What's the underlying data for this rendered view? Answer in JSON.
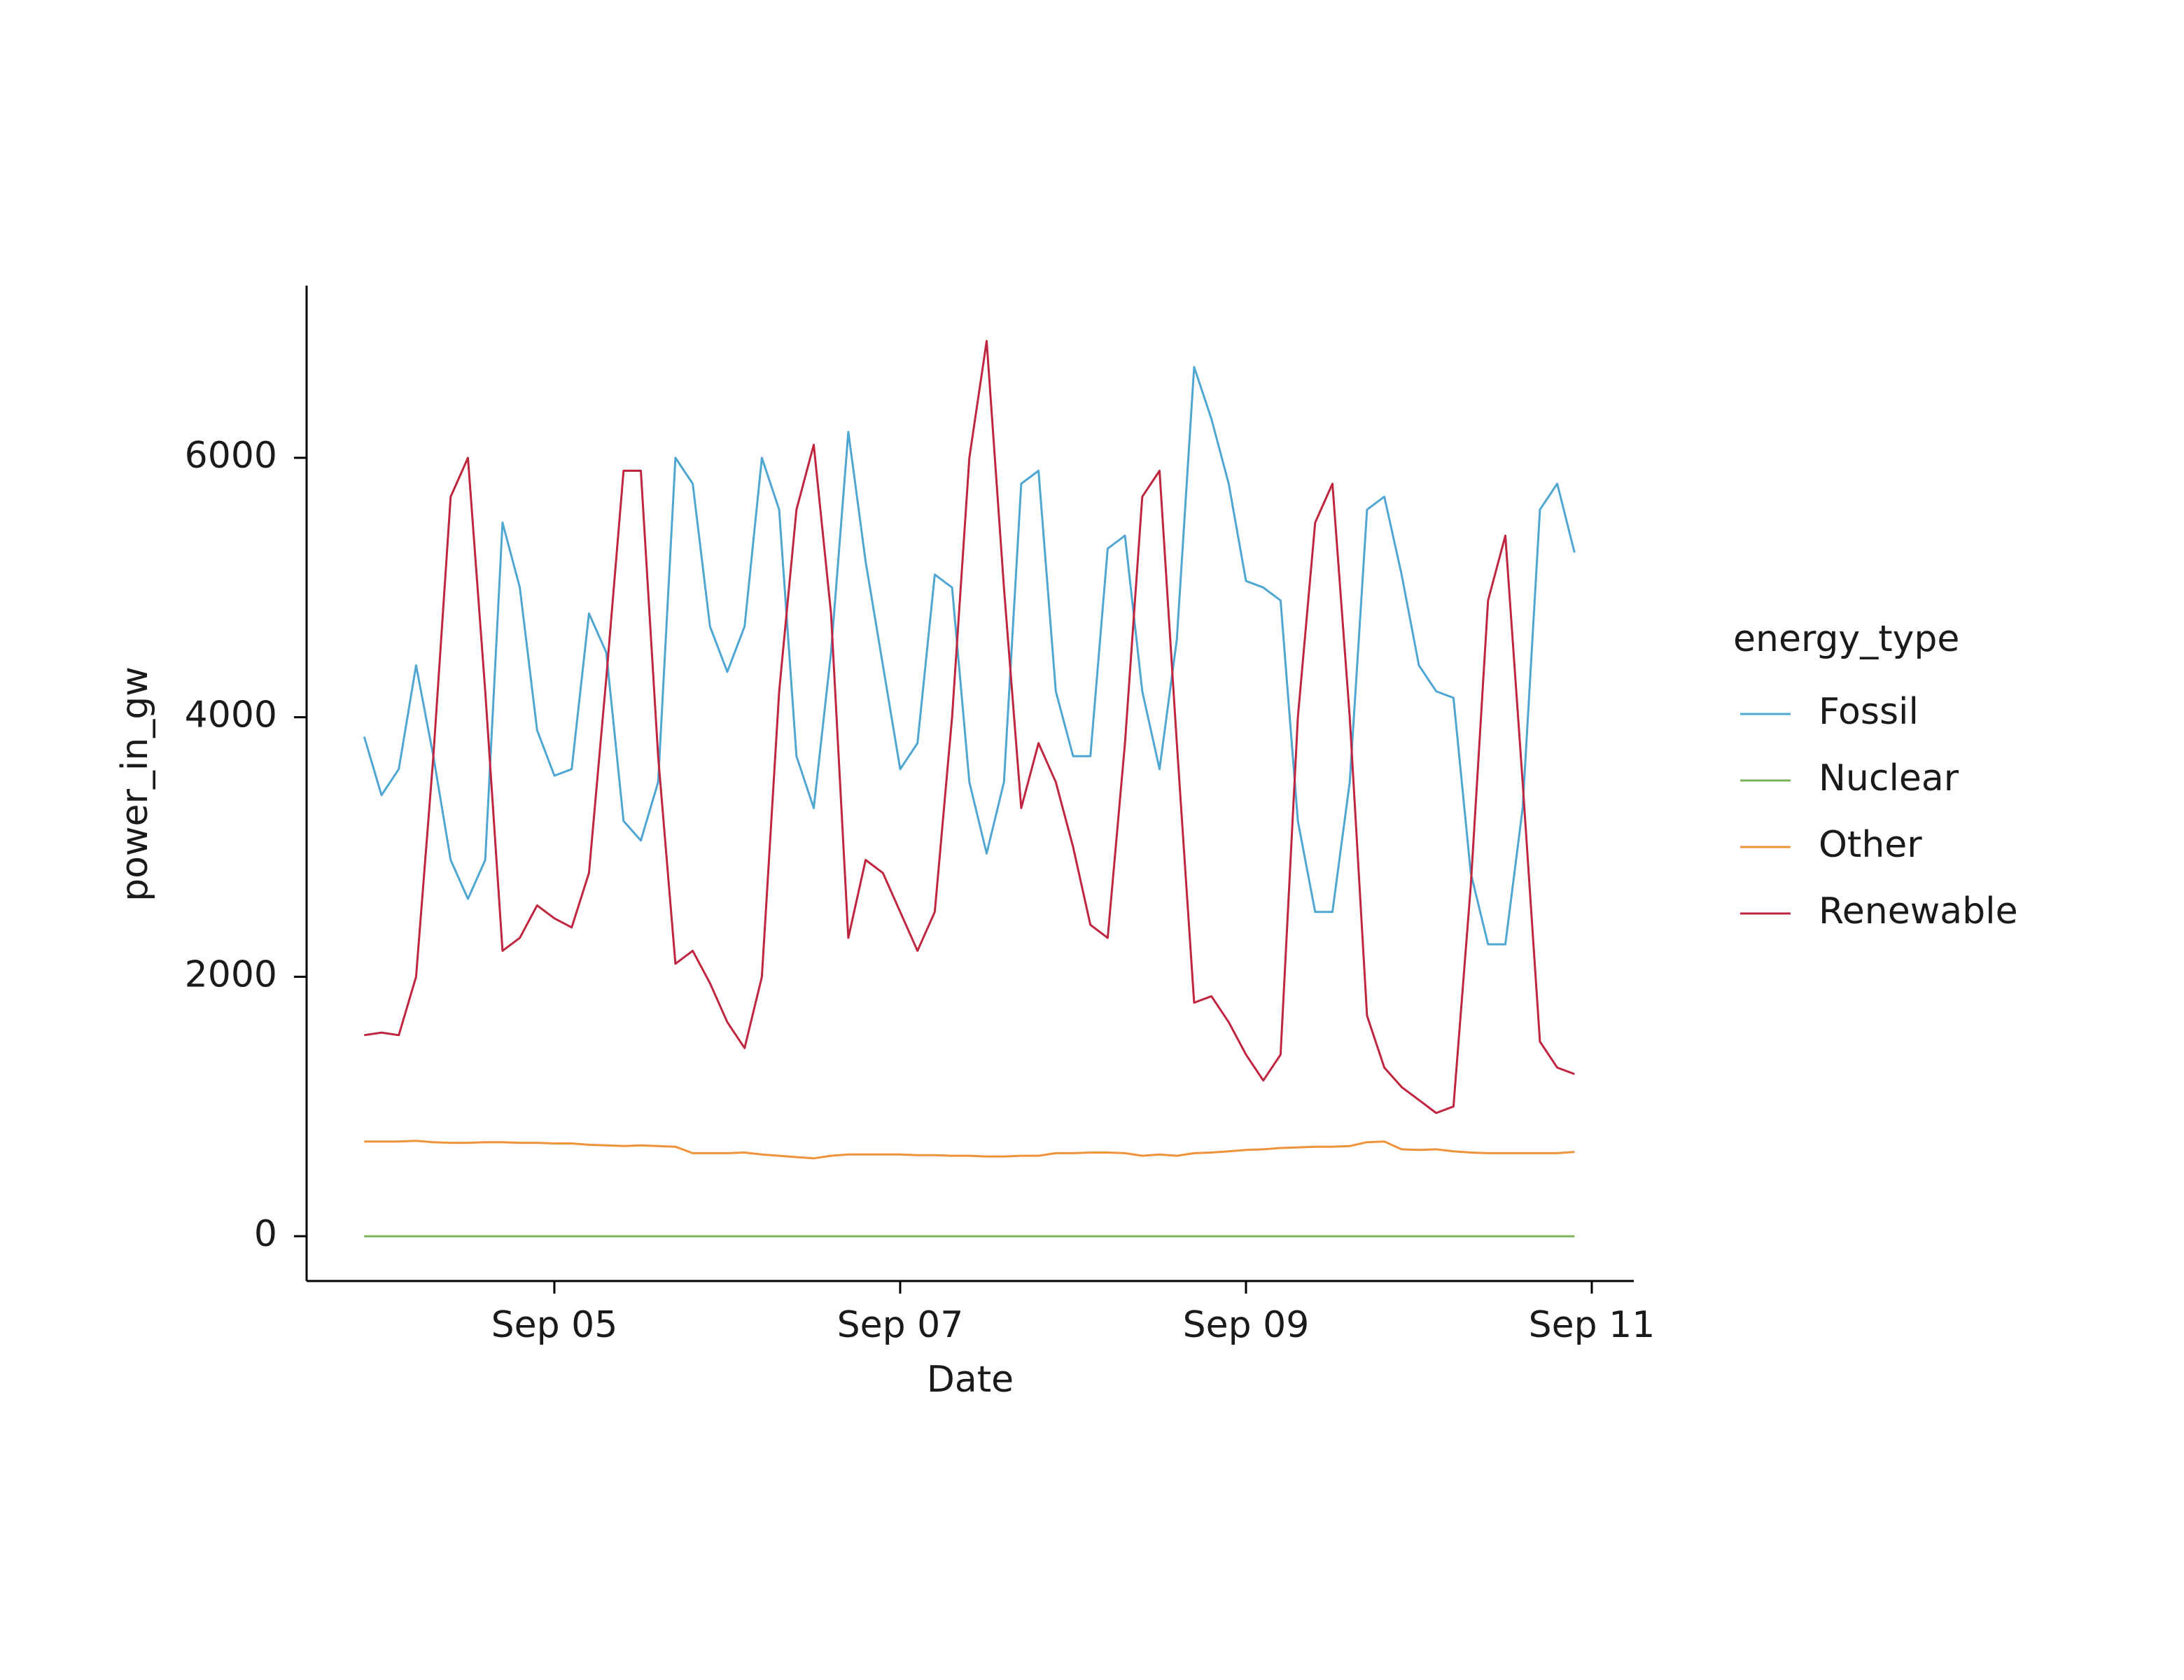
{
  "chart_data": {
    "type": "line",
    "xlabel": "Date",
    "ylabel": "power_in_gw",
    "legend_title": "energy_type",
    "legend": "right",
    "grid": false,
    "x": [
      3.9,
      4.0,
      4.1,
      4.2,
      4.3,
      4.4,
      4.5,
      4.6,
      4.7,
      4.8,
      4.9,
      5.0,
      5.1,
      5.2,
      5.3,
      5.4,
      5.5,
      5.6,
      5.7,
      5.8,
      5.9,
      6.0,
      6.1,
      6.2,
      6.3,
      6.4,
      6.5,
      6.6,
      6.7,
      6.8,
      6.9,
      7.0,
      7.1,
      7.2,
      7.3,
      7.4,
      7.5,
      7.6,
      7.7,
      7.8,
      7.9,
      8.0,
      8.1,
      8.2,
      8.3,
      8.4,
      8.5,
      8.6,
      8.7,
      8.8,
      8.9,
      9.0,
      9.1,
      9.2,
      9.3,
      9.4,
      9.5,
      9.6,
      9.7,
      9.8,
      9.9,
      10.0,
      10.1,
      10.2,
      10.3,
      10.4,
      10.5,
      10.6,
      10.7,
      10.8,
      10.9
    ],
    "xlim": [
      3.567,
      11.243
    ],
    "xticks": [
      {
        "value": 5,
        "label": "Sep 05"
      },
      {
        "value": 7,
        "label": "Sep 07"
      },
      {
        "value": 9,
        "label": "Sep 09"
      },
      {
        "value": 11,
        "label": "Sep 11"
      }
    ],
    "ylim": [
      -345,
      7327
    ],
    "yticks": [
      0,
      2000,
      4000,
      6000
    ],
    "series": [
      {
        "name": "Fossil",
        "color": "#4ea6d1",
        "values": [
          3850,
          3400,
          3600,
          4400,
          3700,
          2900,
          2600,
          2900,
          5500,
          5000,
          3900,
          3550,
          3600,
          4800,
          4500,
          3200,
          3050,
          3500,
          6000,
          5800,
          4700,
          4350,
          4700,
          6000,
          5600,
          3700,
          3300,
          4500,
          6200,
          5200,
          4400,
          3600,
          3800,
          5100,
          5000,
          3500,
          2950,
          3500,
          5800,
          5900,
          4200,
          3700,
          3700,
          5300,
          5400,
          4200,
          3600,
          4600,
          6700,
          6300,
          5800,
          5050,
          5000,
          4900,
          3200,
          2500,
          2500,
          3500,
          5600,
          5700,
          5100,
          4400,
          4200,
          4150,
          2800,
          2250,
          2250,
          3300,
          5600,
          5800,
          5270
        ]
      },
      {
        "name": "Nuclear",
        "color": "#7cb35b",
        "values": [
          0,
          0,
          0,
          0,
          0,
          0,
          0,
          0,
          0,
          0,
          0,
          0,
          0,
          0,
          0,
          0,
          0,
          0,
          0,
          0,
          0,
          0,
          0,
          0,
          0,
          0,
          0,
          0,
          0,
          0,
          0,
          0,
          0,
          0,
          0,
          0,
          0,
          0,
          0,
          0,
          0,
          0,
          0,
          0,
          0,
          0,
          0,
          0,
          0,
          0,
          0,
          0,
          0,
          0,
          0,
          0,
          0,
          0,
          0,
          0,
          0,
          0,
          0,
          0,
          0,
          0,
          0,
          0,
          0,
          0,
          0
        ]
      },
      {
        "name": "Other",
        "color": "#f0923a",
        "values": [
          730,
          730,
          730,
          735,
          725,
          720,
          720,
          725,
          725,
          720,
          720,
          715,
          715,
          705,
          700,
          695,
          700,
          695,
          690,
          640,
          640,
          640,
          645,
          630,
          620,
          610,
          600,
          620,
          630,
          630,
          630,
          630,
          625,
          625,
          620,
          620,
          615,
          615,
          620,
          620,
          640,
          640,
          645,
          645,
          640,
          620,
          630,
          620,
          640,
          645,
          655,
          665,
          670,
          680,
          685,
          690,
          690,
          695,
          725,
          730,
          670,
          665,
          670,
          655,
          645,
          640,
          640,
          640,
          640,
          640,
          650
        ]
      },
      {
        "name": "Renewable",
        "color": "#c0253f",
        "values": [
          1550,
          1570,
          1550,
          2000,
          3700,
          5700,
          6000,
          4200,
          2200,
          2300,
          2550,
          2450,
          2380,
          2800,
          4300,
          5900,
          5900,
          3700,
          2100,
          2200,
          1950,
          1650,
          1450,
          2000,
          4200,
          5600,
          6100,
          4800,
          2300,
          2900,
          2800,
          2500,
          2200,
          2500,
          4000,
          6000,
          6900,
          5000,
          3300,
          3800,
          3500,
          3000,
          2400,
          2300,
          3800,
          5700,
          5900,
          3800,
          1800,
          1850,
          1650,
          1400,
          1200,
          1400,
          4000,
          5500,
          5800,
          4000,
          1700,
          1300,
          1150,
          1050,
          950,
          1000,
          2700,
          4900,
          5400,
          3500,
          1500,
          1300,
          1250
        ]
      }
    ]
  }
}
